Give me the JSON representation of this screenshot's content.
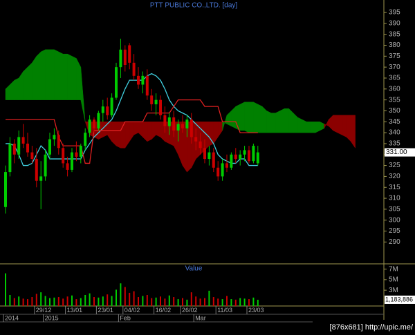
{
  "chart_data": {
    "type": "candlestick",
    "title": "PTT PUBLIC CO.,LTD. [day]",
    "ylim": [
      280,
      400.7
    ],
    "yticks": [
      290,
      295,
      300,
      305,
      310,
      315,
      320,
      325,
      330,
      335,
      340,
      345,
      350,
      355,
      360,
      365,
      370,
      375,
      380,
      385,
      390,
      395
    ],
    "up_color": "#00cc00",
    "down_color": "#cc0000",
    "categories": [
      null,
      null,
      null,
      null,
      null,
      null,
      null,
      "29/12",
      null,
      null,
      null,
      null,
      null,
      null,
      "13/01",
      null,
      null,
      null,
      null,
      null,
      null,
      "23/01",
      null,
      null,
      null,
      null,
      null,
      "04/02",
      null,
      null,
      null,
      null,
      null,
      null,
      "16/02",
      null,
      null,
      null,
      null,
      null,
      "26/02",
      null,
      null,
      null,
      null,
      null,
      null,
      null,
      "11/03",
      null,
      null,
      null,
      null,
      null,
      null,
      "23/03",
      null,
      null,
      null,
      null,
      null,
      null,
      null,
      null,
      null,
      null,
      null,
      null,
      null,
      null,
      null,
      null,
      null,
      null,
      null,
      null,
      null,
      null,
      null,
      null
    ],
    "period_labels": [
      "2014",
      null,
      null,
      null,
      null,
      null,
      null,
      null,
      null,
      "2015",
      null,
      null,
      null,
      null,
      null,
      null,
      null,
      null,
      null,
      null,
      null,
      null,
      null,
      null,
      null,
      null,
      "Feb",
      null,
      null,
      null,
      null,
      null,
      null,
      null,
      null,
      null,
      null,
      null,
      null,
      null,
      null,
      null,
      null,
      "Mar",
      null,
      null,
      null,
      null,
      null,
      null,
      null,
      null,
      null,
      null,
      null,
      null,
      null,
      null,
      null,
      null,
      null,
      null,
      null,
      null,
      null,
      null,
      null,
      null,
      null,
      null,
      null,
      null,
      null,
      null,
      null,
      null,
      null,
      null,
      null,
      null
    ],
    "candles": [
      [
        306,
        325,
        303,
        322
      ],
      [
        322,
        338,
        320,
        335
      ],
      [
        335,
        337,
        326,
        330
      ],
      [
        330,
        341,
        328,
        338
      ],
      [
        338,
        344,
        333,
        335
      ],
      [
        335,
        340,
        329,
        331
      ],
      [
        331,
        334,
        326,
        328
      ],
      [
        328,
        333,
        315,
        318
      ],
      [
        318,
        327,
        305,
        320
      ],
      [
        320,
        332,
        318,
        330
      ],
      [
        330,
        340,
        328,
        337
      ],
      [
        337,
        342,
        334,
        339
      ],
      [
        339,
        341,
        330,
        333
      ],
      [
        333,
        335,
        324,
        326
      ],
      [
        326,
        329,
        320,
        323
      ],
      [
        323,
        333,
        322,
        331
      ],
      [
        331,
        336,
        327,
        329
      ],
      [
        329,
        335,
        326,
        334
      ],
      [
        334,
        342,
        332,
        340
      ],
      [
        340,
        348,
        338,
        346
      ],
      [
        346,
        347,
        340,
        342
      ],
      [
        342,
        350,
        341,
        349
      ],
      [
        349,
        355,
        345,
        352
      ],
      [
        352,
        356,
        346,
        348
      ],
      [
        348,
        358,
        347,
        356
      ],
      [
        356,
        372,
        355,
        370
      ],
      [
        370,
        383,
        365,
        378
      ],
      [
        378,
        380,
        368,
        371
      ],
      [
        380,
        381,
        369,
        372
      ],
      [
        372,
        376,
        364,
        366
      ],
      [
        366,
        370,
        360,
        362
      ],
      [
        362,
        368,
        358,
        366
      ],
      [
        366,
        369,
        355,
        357
      ],
      [
        357,
        360,
        350,
        353
      ],
      [
        353,
        358,
        348,
        355
      ],
      [
        355,
        357,
        346,
        348
      ],
      [
        348,
        352,
        340,
        343
      ],
      [
        343,
        349,
        339,
        347
      ],
      [
        347,
        350,
        338,
        341
      ],
      [
        341,
        346,
        336,
        344
      ],
      [
        344,
        348,
        340,
        342
      ],
      [
        342,
        348,
        338,
        346
      ],
      [
        346,
        349,
        335,
        338
      ],
      [
        338,
        342,
        332,
        336
      ],
      [
        336,
        340,
        330,
        333
      ],
      [
        333,
        337,
        326,
        328
      ],
      [
        328,
        334,
        325,
        331
      ],
      [
        331,
        333,
        322,
        324
      ],
      [
        324,
        327,
        318,
        320
      ],
      [
        320,
        328,
        318,
        326
      ],
      [
        326,
        330,
        322,
        324
      ],
      [
        324,
        331,
        323,
        330
      ],
      [
        330,
        333,
        326,
        328
      ],
      [
        328,
        332,
        325,
        330
      ],
      [
        330,
        334,
        327,
        332
      ],
      [
        332,
        334,
        326,
        327
      ],
      [
        327,
        335,
        326,
        334
      ],
      [
        326,
        334,
        325,
        331
      ]
    ],
    "lines": [
      {
        "color": "#40d0e0",
        "values": [
          335,
          335,
          334,
          330,
          325,
          325,
          326,
          330,
          334,
          332,
          328,
          328,
          328,
          328,
          328,
          328,
          328,
          328,
          332,
          335,
          338,
          340,
          342,
          344,
          346,
          350,
          355,
          360,
          364,
          364,
          364,
          364,
          366,
          367,
          366,
          364,
          360,
          355,
          352,
          350,
          349,
          348,
          346,
          344,
          342,
          340,
          338,
          335,
          330,
          328,
          327,
          326,
          326,
          328,
          328,
          325,
          325,
          325
        ]
      },
      {
        "color": "#e02020",
        "values": [
          346,
          346,
          346,
          346,
          346,
          346,
          346,
          346,
          346,
          346,
          346,
          346,
          338,
          334,
          334,
          334,
          334,
          334,
          326,
          326,
          341,
          341,
          341,
          341,
          341,
          341,
          341,
          345,
          345,
          345,
          345,
          345,
          349,
          349,
          349,
          349,
          349,
          349,
          352,
          355,
          355,
          355,
          355,
          355,
          355,
          352,
          352,
          352,
          352,
          345,
          345,
          345,
          345,
          340,
          340,
          340,
          340,
          340
        ]
      }
    ],
    "cloud": {
      "up_color": "#008000",
      "down_color": "#8b0000",
      "span_a": [
        360,
        362,
        364,
        365,
        368,
        370,
        372,
        375,
        377,
        378,
        378,
        378,
        377,
        376,
        376,
        375,
        374,
        370,
        345,
        339,
        338,
        337,
        338,
        339,
        336,
        334,
        333,
        333,
        336,
        339,
        340,
        338,
        336,
        337,
        339,
        338,
        336,
        335,
        334,
        330,
        325,
        322,
        324,
        328,
        330,
        332,
        334,
        335,
        338,
        341,
        348,
        350,
        352,
        353,
        354,
        354,
        354,
        353,
        352,
        350,
        349,
        349,
        350,
        351,
        351,
        349,
        347,
        346,
        345,
        345,
        345,
        345,
        344,
        343,
        341,
        340,
        339,
        338,
        336,
        333
      ],
      "span_b": [
        355,
        355,
        355,
        355,
        355,
        355,
        355,
        355,
        355,
        355,
        355,
        355,
        355,
        355,
        355,
        355,
        355,
        355,
        345,
        345,
        345,
        345,
        345,
        345,
        345,
        345,
        345,
        345,
        345,
        345,
        345,
        345,
        345,
        345,
        345,
        345,
        345,
        345,
        345,
        345,
        345,
        345,
        345,
        345,
        345,
        345,
        345,
        345,
        345,
        345,
        344,
        343,
        342,
        341,
        341,
        340,
        340,
        340,
        340,
        340,
        340,
        340,
        340,
        340,
        340,
        340,
        340,
        340,
        340,
        340,
        340,
        341,
        342,
        346,
        348,
        348,
        348,
        348,
        348,
        348
      ]
    },
    "price_marker": {
      "value": 331,
      "label": "331.00"
    },
    "volume": {
      "title": "Value",
      "ylim": [
        0,
        8000000
      ],
      "yticks": [
        {
          "value": 3000000,
          "label": "3M"
        },
        {
          "value": 5000000,
          "label": "5M"
        },
        {
          "value": 7000000,
          "label": "7M"
        }
      ],
      "values": [
        6200000,
        2100000,
        1500000,
        1800000,
        1400000,
        1300000,
        1700000,
        2300000,
        2600000,
        1900000,
        1500000,
        1600000,
        1700000,
        1400000,
        1800000,
        2000000,
        1300000,
        1500000,
        2100000,
        2400000,
        1700000,
        1600000,
        1800000,
        2200000,
        1900000,
        3100000,
        4300000,
        3600000,
        2500000,
        2800000,
        1700000,
        1900000,
        2100000,
        1500000,
        1600000,
        1800000,
        1400000,
        2000000,
        1700000,
        1300000,
        1500000,
        1200000,
        2600000,
        1800000,
        1400000,
        1500000,
        2900000,
        1700000,
        1400000,
        1300000,
        1900000,
        1300000,
        1200000,
        1500000,
        1400000,
        1300000,
        1600000,
        1183886
      ],
      "marker": {
        "value": 1183886,
        "label": "1,183,886"
      }
    }
  },
  "watermark": "[876x681] http://upic.me/"
}
